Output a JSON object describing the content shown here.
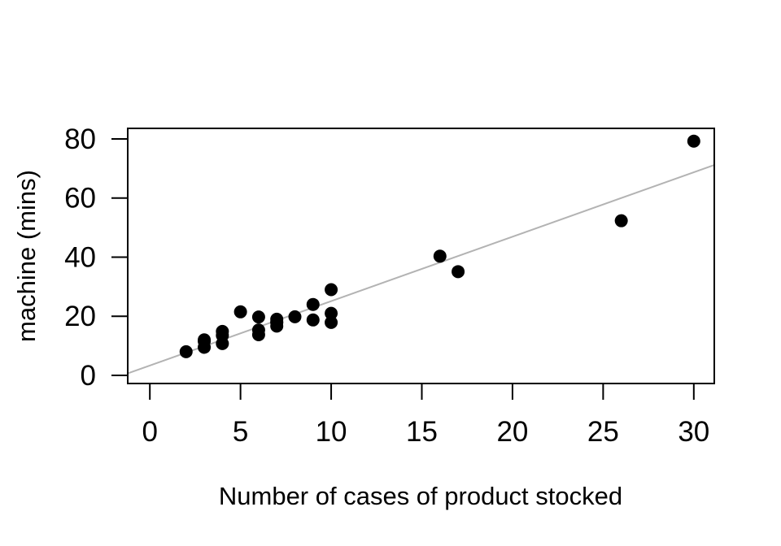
{
  "chart_data": {
    "type": "scatter",
    "title": "",
    "xlabel": "Number of cases of product stocked",
    "ylabel": "machine (mins)",
    "points": [
      {
        "x": 7,
        "y": 16.68
      },
      {
        "x": 3,
        "y": 11.5
      },
      {
        "x": 3,
        "y": 12.03
      },
      {
        "x": 4,
        "y": 14.88
      },
      {
        "x": 6,
        "y": 13.75
      },
      {
        "x": 7,
        "y": 18.11
      },
      {
        "x": 2,
        "y": 8.0
      },
      {
        "x": 7,
        "y": 17.83
      },
      {
        "x": 30,
        "y": 79.24
      },
      {
        "x": 5,
        "y": 21.5
      },
      {
        "x": 16,
        "y": 40.33
      },
      {
        "x": 10,
        "y": 21.0
      },
      {
        "x": 4,
        "y": 13.5
      },
      {
        "x": 6,
        "y": 19.75
      },
      {
        "x": 9,
        "y": 24.0
      },
      {
        "x": 10,
        "y": 29.0
      },
      {
        "x": 6,
        "y": 15.35
      },
      {
        "x": 7,
        "y": 19.0
      },
      {
        "x": 3,
        "y": 9.5
      },
      {
        "x": 17,
        "y": 35.1
      },
      {
        "x": 10,
        "y": 17.9
      },
      {
        "x": 26,
        "y": 52.32
      },
      {
        "x": 9,
        "y": 18.75
      },
      {
        "x": 8,
        "y": 19.83
      },
      {
        "x": 4,
        "y": 10.75
      }
    ],
    "xticks": [
      0,
      5,
      10,
      15,
      20,
      25,
      30
    ],
    "yticks": [
      0,
      20,
      40,
      60,
      80
    ],
    "xlim": [
      -1.22,
      31.13
    ],
    "ylim": [
      -2.75,
      83.57
    ],
    "fit_line": {
      "type": "linear",
      "intercept": 3.32,
      "slope": 2.18,
      "color": "#b3b3b3"
    },
    "point_color": "#000000",
    "point_radius": 8,
    "axis_color": "#000000",
    "background": "#ffffff",
    "grid": false,
    "legend": null
  }
}
